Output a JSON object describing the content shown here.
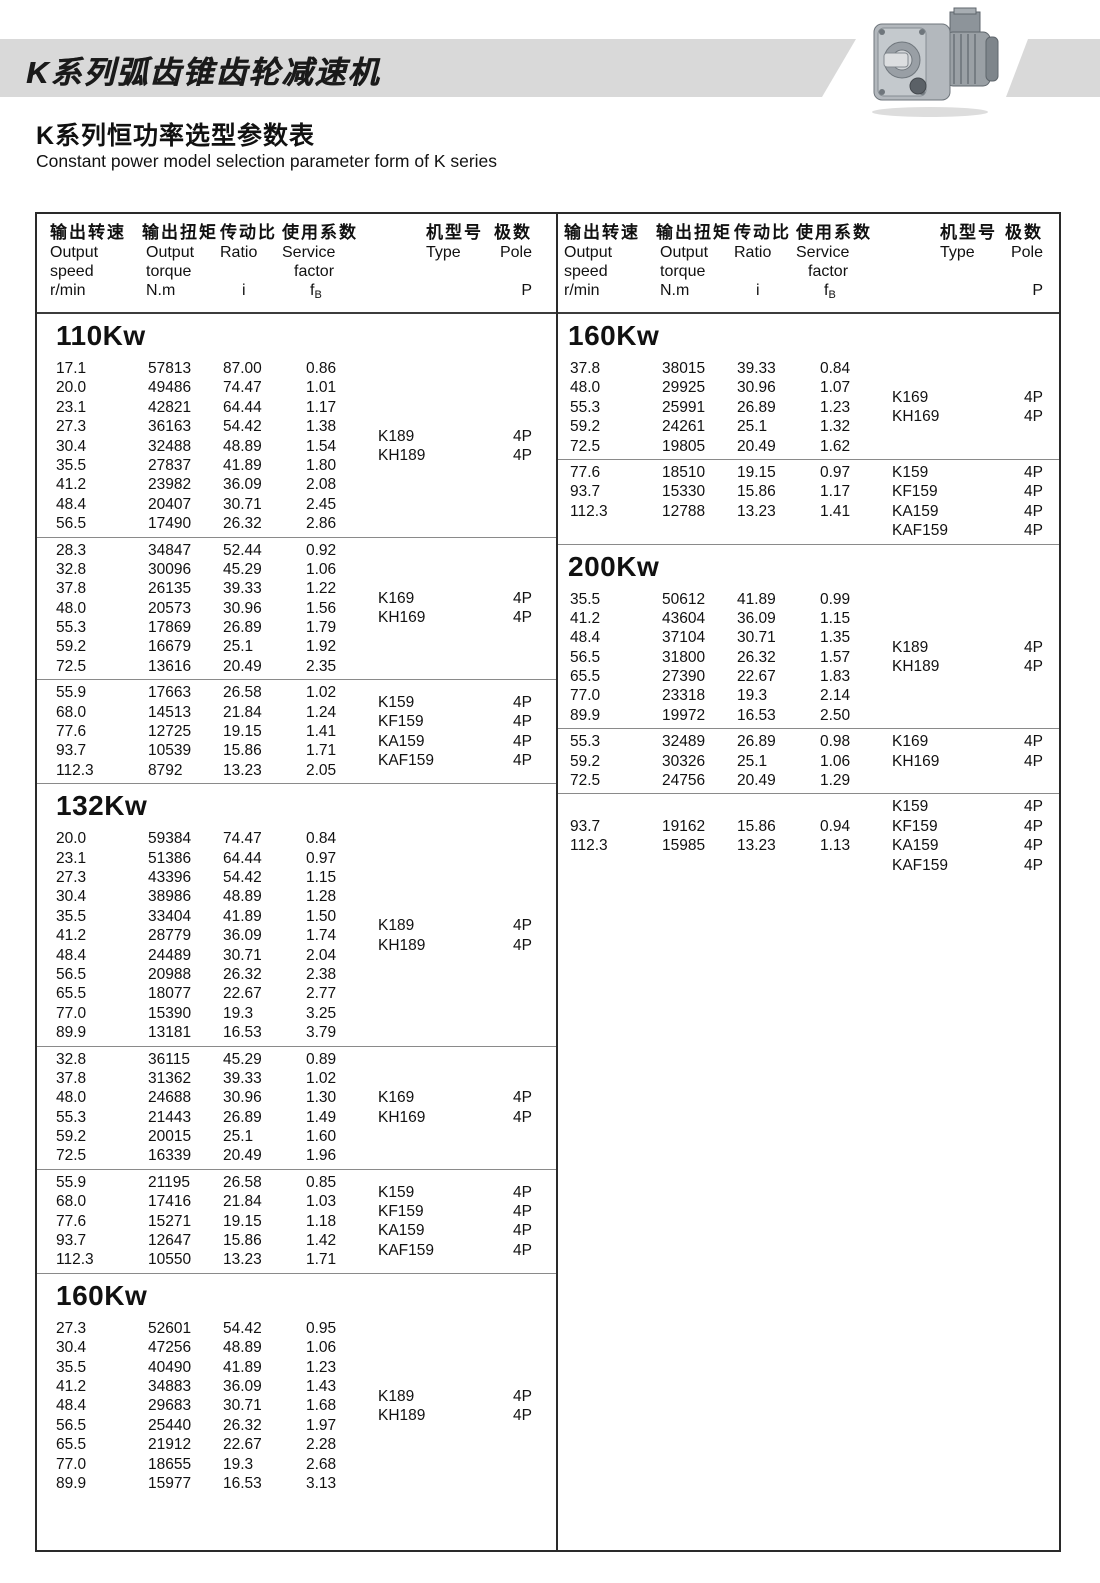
{
  "banner": {
    "title": "K系列弧齿锥齿轮减速机"
  },
  "page_heading": {
    "zh": "K系列恒功率选型参数表",
    "en": "Constant power model selection parameter form of K series"
  },
  "table_header": {
    "speed": {
      "zh": "输出转速",
      "en1": "Output",
      "en2": "speed",
      "unit": "r/min"
    },
    "torque": {
      "zh": "输出扭矩",
      "en1": "Output",
      "en2": "torque",
      "unit": "N.m"
    },
    "ratio": {
      "zh": "传动比",
      "en1": "Ratio",
      "unit": "i"
    },
    "factor": {
      "zh": "使用系数",
      "en1": "Service",
      "en2": "factor",
      "unit": "f",
      "unit_sub": "B"
    },
    "type": {
      "zh": "机型号",
      "en1": "Type"
    },
    "pole": {
      "zh": "极数",
      "en1": "Pole",
      "unit": "P"
    }
  },
  "columns": {
    "left": {
      "sections": [
        {
          "title": "110Kw",
          "blocks": [
            {
              "rows": [
                [
                  "17.1",
                  "57813",
                  "87.00",
                  "0.86"
                ],
                [
                  "20.0",
                  "49486",
                  "74.47",
                  "1.01"
                ],
                [
                  "23.1",
                  "42821",
                  "64.44",
                  "1.17"
                ],
                [
                  "27.3",
                  "36163",
                  "54.42",
                  "1.38"
                ],
                [
                  "30.4",
                  "32488",
                  "48.89",
                  "1.54"
                ],
                [
                  "35.5",
                  "27837",
                  "41.89",
                  "1.80"
                ],
                [
                  "41.2",
                  "23982",
                  "36.09",
                  "2.08"
                ],
                [
                  "48.4",
                  "20407",
                  "30.71",
                  "2.45"
                ],
                [
                  "56.5",
                  "17490",
                  "26.32",
                  "2.86"
                ]
              ],
              "types": [
                {
                  "name": "K189",
                  "pole": "4P"
                },
                {
                  "name": "KH189",
                  "pole": "4P"
                }
              ]
            },
            {
              "rows": [
                [
                  "28.3",
                  "34847",
                  "52.44",
                  "0.92"
                ],
                [
                  "32.8",
                  "30096",
                  "45.29",
                  "1.06"
                ],
                [
                  "37.8",
                  "26135",
                  "39.33",
                  "1.22"
                ],
                [
                  "48.0",
                  "20573",
                  "30.96",
                  "1.56"
                ],
                [
                  "55.3",
                  "17869",
                  "26.89",
                  "1.79"
                ],
                [
                  "59.2",
                  "16679",
                  "25.1",
                  "1.92"
                ],
                [
                  "72.5",
                  "13616",
                  "20.49",
                  "2.35"
                ]
              ],
              "types": [
                {
                  "name": "K169",
                  "pole": "4P"
                },
                {
                  "name": "KH169",
                  "pole": "4P"
                }
              ]
            },
            {
              "rows": [
                [
                  "55.9",
                  "17663",
                  "26.58",
                  "1.02"
                ],
                [
                  "68.0",
                  "14513",
                  "21.84",
                  "1.24"
                ],
                [
                  "77.6",
                  "12725",
                  "19.15",
                  "1.41"
                ],
                [
                  "93.7",
                  "10539",
                  "15.86",
                  "1.71"
                ],
                [
                  "112.3",
                  "8792",
                  "13.23",
                  "2.05"
                ]
              ],
              "types": [
                {
                  "name": "K159",
                  "pole": "4P"
                },
                {
                  "name": "KF159",
                  "pole": "4P"
                },
                {
                  "name": "KA159",
                  "pole": "4P"
                },
                {
                  "name": "KAF159",
                  "pole": "4P"
                }
              ]
            }
          ]
        },
        {
          "title": "132Kw",
          "blocks": [
            {
              "rows": [
                [
                  "20.0",
                  "59384",
                  "74.47",
                  "0.84"
                ],
                [
                  "23.1",
                  "51386",
                  "64.44",
                  "0.97"
                ],
                [
                  "27.3",
                  "43396",
                  "54.42",
                  "1.15"
                ],
                [
                  "30.4",
                  "38986",
                  "48.89",
                  "1.28"
                ],
                [
                  "35.5",
                  "33404",
                  "41.89",
                  "1.50"
                ],
                [
                  "41.2",
                  "28779",
                  "36.09",
                  "1.74"
                ],
                [
                  "48.4",
                  "24489",
                  "30.71",
                  "2.04"
                ],
                [
                  "56.5",
                  "20988",
                  "26.32",
                  "2.38"
                ],
                [
                  "65.5",
                  "18077",
                  "22.67",
                  "2.77"
                ],
                [
                  "77.0",
                  "15390",
                  "19.3",
                  "3.25"
                ],
                [
                  "89.9",
                  "13181",
                  "16.53",
                  "3.79"
                ]
              ],
              "types": [
                {
                  "name": "K189",
                  "pole": "4P"
                },
                {
                  "name": "KH189",
                  "pole": "4P"
                }
              ]
            },
            {
              "rows": [
                [
                  "32.8",
                  "36115",
                  "45.29",
                  "0.89"
                ],
                [
                  "37.8",
                  "31362",
                  "39.33",
                  "1.02"
                ],
                [
                  "48.0",
                  "24688",
                  "30.96",
                  "1.30"
                ],
                [
                  "55.3",
                  "21443",
                  "26.89",
                  "1.49"
                ],
                [
                  "59.2",
                  "20015",
                  "25.1",
                  "1.60"
                ],
                [
                  "72.5",
                  "16339",
                  "20.49",
                  "1.96"
                ]
              ],
              "types": [
                {
                  "name": "K169",
                  "pole": "4P"
                },
                {
                  "name": "KH169",
                  "pole": "4P"
                }
              ]
            },
            {
              "rows": [
                [
                  "55.9",
                  "21195",
                  "26.58",
                  "0.85"
                ],
                [
                  "68.0",
                  "17416",
                  "21.84",
                  "1.03"
                ],
                [
                  "77.6",
                  "15271",
                  "19.15",
                  "1.18"
                ],
                [
                  "93.7",
                  "12647",
                  "15.86",
                  "1.42"
                ],
                [
                  "112.3",
                  "10550",
                  "13.23",
                  "1.71"
                ]
              ],
              "types": [
                {
                  "name": "K159",
                  "pole": "4P"
                },
                {
                  "name": "KF159",
                  "pole": "4P"
                },
                {
                  "name": "KA159",
                  "pole": "4P"
                },
                {
                  "name": "KAF159",
                  "pole": "4P"
                }
              ]
            }
          ]
        },
        {
          "title": "160Kw",
          "blocks": [
            {
              "rows": [
                [
                  "27.3",
                  "52601",
                  "54.42",
                  "0.95"
                ],
                [
                  "30.4",
                  "47256",
                  "48.89",
                  "1.06"
                ],
                [
                  "35.5",
                  "40490",
                  "41.89",
                  "1.23"
                ],
                [
                  "41.2",
                  "34883",
                  "36.09",
                  "1.43"
                ],
                [
                  "48.4",
                  "29683",
                  "30.71",
                  "1.68"
                ],
                [
                  "56.5",
                  "25440",
                  "26.32",
                  "1.97"
                ],
                [
                  "65.5",
                  "21912",
                  "22.67",
                  "2.28"
                ],
                [
                  "77.0",
                  "18655",
                  "19.3",
                  "2.68"
                ],
                [
                  "89.9",
                  "15977",
                  "16.53",
                  "3.13"
                ]
              ],
              "types": [
                {
                  "name": "K189",
                  "pole": "4P"
                },
                {
                  "name": "KH189",
                  "pole": "4P"
                }
              ]
            }
          ]
        }
      ]
    },
    "right": {
      "sections": [
        {
          "title": "160Kw",
          "blocks": [
            {
              "rows": [
                [
                  "37.8",
                  "38015",
                  "39.33",
                  "0.84"
                ],
                [
                  "48.0",
                  "29925",
                  "30.96",
                  "1.07"
                ],
                [
                  "55.3",
                  "25991",
                  "26.89",
                  "1.23"
                ],
                [
                  "59.2",
                  "24261",
                  "25.1",
                  "1.32"
                ],
                [
                  "72.5",
                  "19805",
                  "20.49",
                  "1.62"
                ]
              ],
              "types": [
                {
                  "name": "K169",
                  "pole": "4P"
                },
                {
                  "name": "KH169",
                  "pole": "4P"
                }
              ]
            },
            {
              "rows_align": "top",
              "rows": [
                [
                  "77.6",
                  "18510",
                  "19.15",
                  "0.97"
                ],
                [
                  "93.7",
                  "15330",
                  "15.86",
                  "1.17"
                ],
                [
                  "112.3",
                  "12788",
                  "13.23",
                  "1.41"
                ]
              ],
              "types": [
                {
                  "name": "K159",
                  "pole": "4P"
                },
                {
                  "name": "KF159",
                  "pole": "4P"
                },
                {
                  "name": "KA159",
                  "pole": "4P"
                },
                {
                  "name": "KAF159",
                  "pole": "4P"
                }
              ]
            }
          ]
        },
        {
          "title": "200Kw",
          "blocks": [
            {
              "rows": [
                [
                  "35.5",
                  "50612",
                  "41.89",
                  "0.99"
                ],
                [
                  "41.2",
                  "43604",
                  "36.09",
                  "1.15"
                ],
                [
                  "48.4",
                  "37104",
                  "30.71",
                  "1.35"
                ],
                [
                  "56.5",
                  "31800",
                  "26.32",
                  "1.57"
                ],
                [
                  "65.5",
                  "27390",
                  "22.67",
                  "1.83"
                ],
                [
                  "77.0",
                  "23318",
                  "19.3",
                  "2.14"
                ],
                [
                  "89.9",
                  "19972",
                  "16.53",
                  "2.50"
                ]
              ],
              "types": [
                {
                  "name": "K189",
                  "pole": "4P"
                },
                {
                  "name": "KH189",
                  "pole": "4P"
                }
              ]
            },
            {
              "types_align": "top",
              "rows": [
                [
                  "55.3",
                  "32489",
                  "26.89",
                  "0.98"
                ],
                [
                  "59.2",
                  "30326",
                  "25.1",
                  "1.06"
                ],
                [
                  "72.5",
                  "24756",
                  "20.49",
                  "1.29"
                ]
              ],
              "types": [
                {
                  "name": "K169",
                  "pole": "4P"
                },
                {
                  "name": "KH169",
                  "pole": "4P"
                }
              ]
            },
            {
              "rows": [
                [
                  "93.7",
                  "19162",
                  "15.86",
                  "0.94"
                ],
                [
                  "112.3",
                  "15985",
                  "13.23",
                  "1.13"
                ]
              ],
              "types": [
                {
                  "name": "K159",
                  "pole": "4P"
                },
                {
                  "name": "KF159",
                  "pole": "4P"
                },
                {
                  "name": "KA159",
                  "pole": "4P"
                },
                {
                  "name": "KAF159",
                  "pole": "4P"
                }
              ]
            }
          ]
        }
      ]
    }
  },
  "colors": {
    "banner_gray": "#d9d9d9",
    "border_dark": "#2a2a2a",
    "block_separator": "#8a8a8a"
  }
}
